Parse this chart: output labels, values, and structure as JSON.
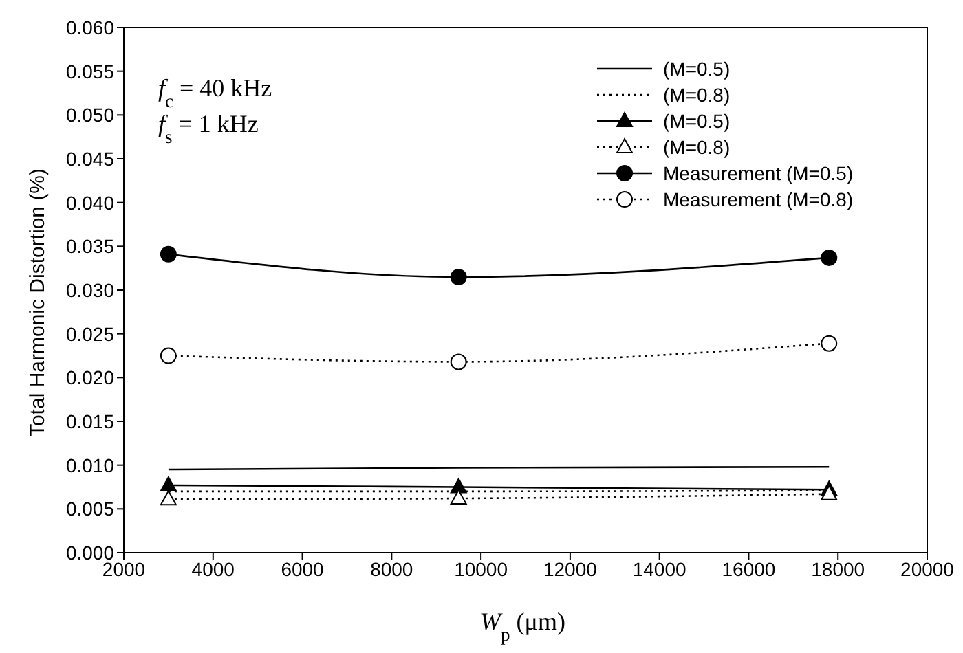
{
  "chart_data": {
    "type": "line",
    "ylabel": "Total Harmonic Distortion (%)",
    "xlabel": "W$_{p}$ (μm)",
    "annotations": [
      "f$_{c}$ = 40 kHz",
      "f$_{s}$ = 1 kHz"
    ],
    "xlim": [
      2000,
      20000
    ],
    "xticks": [
      2000,
      4000,
      6000,
      8000,
      10000,
      12000,
      14000,
      16000,
      18000,
      20000
    ],
    "ylim": [
      0,
      0.06
    ],
    "yticks": [
      {
        "value": 0,
        "label": "0.000"
      },
      {
        "value": 0.005,
        "label": "0.005"
      },
      {
        "value": 0.01,
        "label": "0.010"
      },
      {
        "value": 0.015,
        "label": "0.015"
      },
      {
        "value": 0.02,
        "label": "0.020"
      },
      {
        "value": 0.025,
        "label": "0.025"
      },
      {
        "value": 0.03,
        "label": "0.030"
      },
      {
        "value": 0.035,
        "label": "0.035"
      },
      {
        "value": 0.04,
        "label": "0.040"
      },
      {
        "value": 0.045,
        "label": "0.045"
      },
      {
        "value": 0.05,
        "label": "0.050"
      },
      {
        "value": 0.055,
        "label": "0.055"
      },
      {
        "value": 0.06,
        "label": "0.060"
      }
    ],
    "x": [
      3000,
      9500,
      17800
    ],
    "legend": "top right",
    "grid": false,
    "series": [
      {
        "name": "(M=0.5)",
        "color": "#000000",
        "values": [
          0.0095,
          0.0097,
          0.0098
        ],
        "line_style": "solid",
        "marker": "none"
      },
      {
        "name": "(M=0.8)",
        "color": "#000000",
        "values": [
          0.007,
          0.007,
          0.0071
        ],
        "line_style": "dotted",
        "marker": "none"
      },
      {
        "name": "(M=0.5)",
        "color": "#000000",
        "values": [
          0.0077,
          0.0075,
          0.0072
        ],
        "line_style": "solid",
        "marker": "triangle"
      },
      {
        "name": "(M=0.8)",
        "color": "#000000",
        "values": [
          0.0061,
          0.0062,
          0.0067
        ],
        "line_style": "dotted",
        "marker": "triangle"
      },
      {
        "name": "Measurement (M=0.5)",
        "color": "#000000",
        "values": [
          0.0341,
          0.0315,
          0.0337
        ],
        "line_style": "solid",
        "marker": "circle"
      },
      {
        "name": "Measurement (M=0.8)",
        "color": "#000000",
        "values": [
          0.0225,
          0.0218,
          0.0239
        ],
        "line_style": "dotted",
        "marker": "circle"
      }
    ]
  }
}
